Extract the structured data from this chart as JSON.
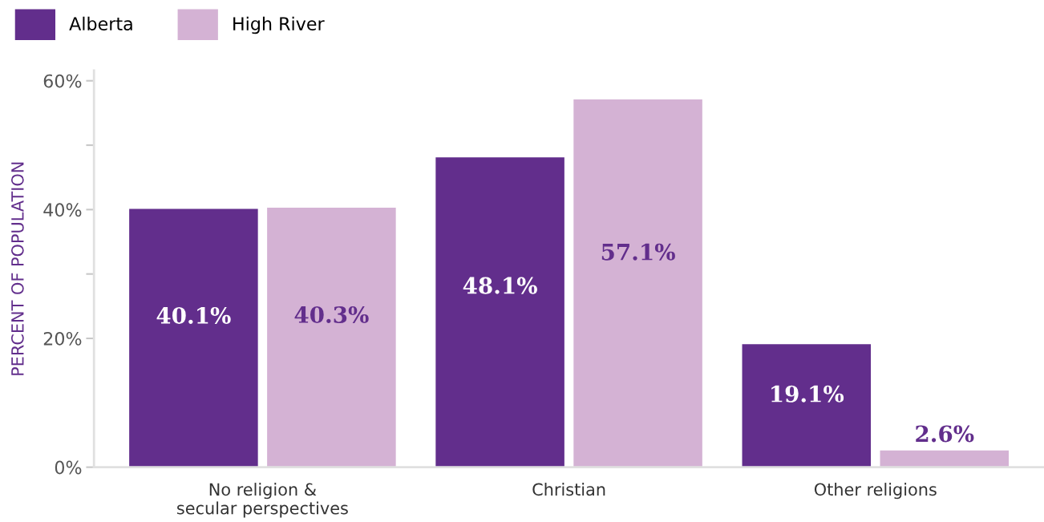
{
  "chart_data": {
    "type": "bar",
    "ylabel": "PERCENT OF POPULATION",
    "categories": [
      "No religion &\nsecular perspectives",
      "Christian",
      "Other religions"
    ],
    "series": [
      {
        "name": "Alberta",
        "color": "#622e8c",
        "values": [
          40.1,
          48.1,
          19.1
        ],
        "value_labels": [
          "40.1%",
          "48.1%",
          "19.1%"
        ]
      },
      {
        "name": "High River",
        "color": "#d4b2d4",
        "values": [
          40.3,
          57.1,
          2.6
        ],
        "value_labels": [
          "40.3%",
          "57.1%",
          "2.6%"
        ]
      }
    ],
    "ylim": [
      0,
      61.6
    ],
    "yticks": [
      {
        "value": 0,
        "label": "0%"
      },
      {
        "value": 20,
        "label": "20%"
      },
      {
        "value": 30,
        "label": null
      },
      {
        "value": 40,
        "label": "40%"
      },
      {
        "value": 50,
        "label": null
      },
      {
        "value": 60,
        "label": "60%"
      }
    ],
    "grid": false,
    "legend": "top left"
  }
}
